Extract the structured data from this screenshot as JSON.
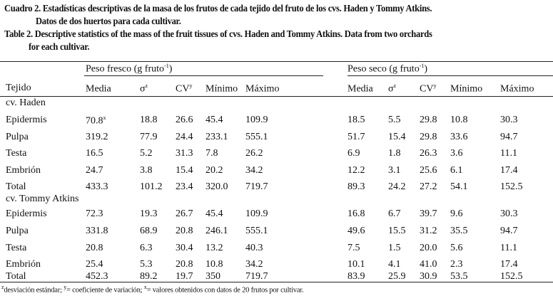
{
  "caption_es": {
    "line1": "Cuadro 2. Estadísticas descriptivas de la masa de los frutos de cada tejido del fruto de los cvs. Haden y Tommy Atkins.",
    "line2": "Datos de dos huertos para cada cultivar."
  },
  "caption_en": {
    "line1": "Table 2. Descriptive statistics of the mass of the fruit tissues of cvs. Haden and Tommy Atkins. Data from two orchards",
    "line2": "for each cultivar."
  },
  "groups": {
    "fresh": "Peso fresco (g fruto",
    "fresh_sup": "-1",
    "fresh_end": ")",
    "dry": "Peso seco (g fruto",
    "dry_sup": "-1",
    "dry_end": ")"
  },
  "headers": {
    "tissue": "Tejido",
    "cols": [
      "Media",
      "σ",
      "CV",
      "Mínimo",
      "Máximo",
      "Media",
      "σ",
      "CV",
      "Mínimo",
      "Máximo"
    ],
    "sups": [
      "",
      "z",
      "y",
      "",
      "",
      "",
      "z",
      "y",
      "",
      ""
    ]
  },
  "sections": [
    {
      "title": "cv. Haden",
      "rows": [
        {
          "tissue": "Epidermis",
          "values": [
            "70.8",
            "18.8",
            "26.6",
            "45.4",
            "109.9",
            "18.5",
            "5.5",
            "29.8",
            "10.8",
            "30.3"
          ],
          "first_sup": "x"
        },
        {
          "tissue": "Pulpa",
          "values": [
            "319.2",
            "77.9",
            "24.4",
            "233.1",
            "555.1",
            "51.7",
            "15.4",
            "29.8",
            "33.6",
            "94.7"
          ]
        },
        {
          "tissue": "Testa",
          "values": [
            "16.5",
            "5.2",
            "31.3",
            "7.8",
            "26.2",
            "6.9",
            "1.8",
            "26.3",
            "3.6",
            "11.1"
          ]
        },
        {
          "tissue": "Embrión",
          "values": [
            "24.7",
            "3.8",
            "15.4",
            "20.2",
            "34.2",
            "12.2",
            "3.1",
            "25.6",
            "6.1",
            "17.4"
          ]
        },
        {
          "tissue": "Total",
          "values": [
            "433.3",
            "101.2",
            "23.4",
            "320.0",
            "719.7",
            "89.3",
            "24.2",
            "27.2",
            "54.1",
            "152.5"
          ]
        }
      ]
    },
    {
      "title": "cv. Tommy Atkins",
      "rows": [
        {
          "tissue": "Epidermis",
          "values": [
            "72.3",
            "19.3",
            "26.7",
            "45.4",
            "109.9",
            "16.8",
            "6.7",
            "39.7",
            "9.6",
            "30.3"
          ]
        },
        {
          "tissue": "Pulpa",
          "values": [
            "331.8",
            "68.9",
            "20.8",
            "246.1",
            "555.1",
            "49.6",
            "15.5",
            "31.2",
            "35.5",
            "94.7"
          ]
        },
        {
          "tissue": "Testa",
          "values": [
            "20.8",
            "6.3",
            "30.4",
            "13.2",
            "40.3",
            "7.5",
            "1.5",
            "20.0",
            "5.6",
            "11.1"
          ]
        },
        {
          "tissue": "Embrión",
          "values": [
            "25.4",
            "5.3",
            "20.8",
            "10.8",
            "34.2",
            "10.1",
            "4.1",
            "41.0",
            "2.3",
            "17.4"
          ]
        },
        {
          "tissue": "Total",
          "values": [
            "452.3",
            "89.2",
            "19.7",
            "350",
            "719.7",
            "83.9",
            "25.9",
            "30.9",
            "53.5",
            "152.5"
          ]
        }
      ]
    }
  ],
  "footnote": {
    "z_sup": "z",
    "z": "desviación estándar; ",
    "y_sup": "y",
    "y": "= coeficiente de variación; ",
    "x_sup": "x",
    "x": "= valores obtenidos con datos de 20 frutos por cultivar."
  }
}
